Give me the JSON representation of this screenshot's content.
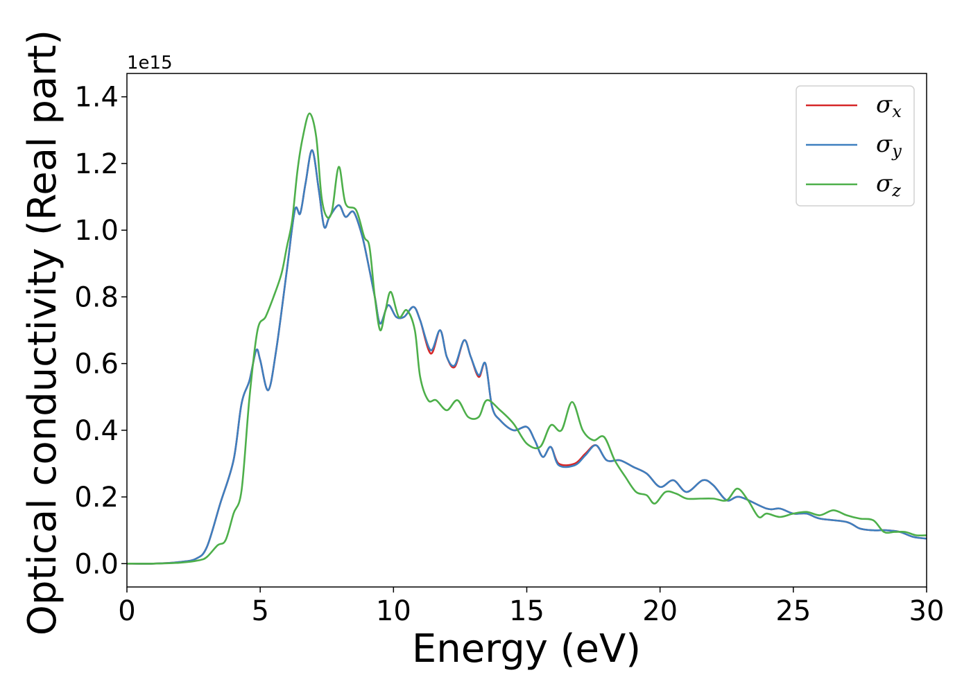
{
  "chart_data": {
    "type": "line",
    "xlabel": "Energy (eV)",
    "ylabel": "Optical conductivity (Real part)",
    "y_offset_label": "1e15",
    "xlim": [
      0,
      30
    ],
    "ylim": [
      -0.07,
      1.47
    ],
    "x_ticks": [
      0,
      5,
      10,
      15,
      20,
      25,
      30
    ],
    "x_tick_labels": [
      "0",
      "5",
      "10",
      "15",
      "20",
      "25",
      "30"
    ],
    "y_ticks": [
      0.0,
      0.2,
      0.4,
      0.6,
      0.8,
      1.0,
      1.2,
      1.4
    ],
    "y_tick_labels": [
      "0.0",
      "0.2",
      "0.4",
      "0.6",
      "0.8",
      "1.0",
      "1.2",
      "1.4"
    ],
    "grid": false,
    "legend_position": "top-right",
    "series": [
      {
        "name": "σx",
        "symbol": "σ",
        "subscript": "x",
        "color": "#d62728",
        "points": [
          [
            0,
            0
          ],
          [
            1,
            0
          ],
          [
            2,
            0.005
          ],
          [
            2.6,
            0.015
          ],
          [
            3,
            0.05
          ],
          [
            3.5,
            0.18
          ],
          [
            4,
            0.31
          ],
          [
            4.3,
            0.48
          ],
          [
            4.6,
            0.55
          ],
          [
            4.85,
            0.64
          ],
          [
            5,
            0.61
          ],
          [
            5.3,
            0.52
          ],
          [
            5.6,
            0.64
          ],
          [
            6,
            0.88
          ],
          [
            6.3,
            1.06
          ],
          [
            6.5,
            1.05
          ],
          [
            6.7,
            1.14
          ],
          [
            6.95,
            1.24
          ],
          [
            7.2,
            1.12
          ],
          [
            7.4,
            1.01
          ],
          [
            7.6,
            1.04
          ],
          [
            7.95,
            1.075
          ],
          [
            8.2,
            1.04
          ],
          [
            8.5,
            1.055
          ],
          [
            8.8,
            0.99
          ],
          [
            9,
            0.92
          ],
          [
            9.3,
            0.8
          ],
          [
            9.5,
            0.72
          ],
          [
            9.8,
            0.775
          ],
          [
            10.1,
            0.74
          ],
          [
            10.4,
            0.74
          ],
          [
            10.75,
            0.77
          ],
          [
            11,
            0.73
          ],
          [
            11.4,
            0.63
          ],
          [
            11.75,
            0.7
          ],
          [
            12,
            0.62
          ],
          [
            12.3,
            0.59
          ],
          [
            12.65,
            0.67
          ],
          [
            12.9,
            0.62
          ],
          [
            13.2,
            0.56
          ],
          [
            13.45,
            0.6
          ],
          [
            13.7,
            0.47
          ],
          [
            14,
            0.43
          ],
          [
            14.5,
            0.4
          ],
          [
            15,
            0.41
          ],
          [
            15.3,
            0.37
          ],
          [
            15.6,
            0.32
          ],
          [
            15.9,
            0.35
          ],
          [
            16.2,
            0.3
          ],
          [
            16.8,
            0.3
          ],
          [
            17.2,
            0.33
          ],
          [
            17.6,
            0.355
          ],
          [
            18,
            0.31
          ],
          [
            18.5,
            0.31
          ],
          [
            19,
            0.29
          ],
          [
            19.5,
            0.27
          ],
          [
            20,
            0.23
          ],
          [
            20.5,
            0.25
          ],
          [
            21,
            0.215
          ],
          [
            21.6,
            0.25
          ],
          [
            22,
            0.235
          ],
          [
            22.5,
            0.19
          ],
          [
            23,
            0.2
          ],
          [
            24,
            0.165
          ],
          [
            24.5,
            0.165
          ],
          [
            25,
            0.15
          ],
          [
            25.5,
            0.15
          ],
          [
            26,
            0.135
          ],
          [
            27,
            0.125
          ],
          [
            27.5,
            0.105
          ],
          [
            28,
            0.1
          ],
          [
            28.5,
            0.1
          ],
          [
            29,
            0.095
          ],
          [
            29.5,
            0.08
          ],
          [
            30,
            0.075
          ]
        ]
      },
      {
        "name": "σy",
        "symbol": "σ",
        "subscript": "y",
        "color": "#3d7fbf",
        "points": [
          [
            0,
            0
          ],
          [
            1,
            0
          ],
          [
            2,
            0.005
          ],
          [
            2.6,
            0.015
          ],
          [
            3,
            0.05
          ],
          [
            3.5,
            0.18
          ],
          [
            4,
            0.31
          ],
          [
            4.3,
            0.48
          ],
          [
            4.6,
            0.55
          ],
          [
            4.85,
            0.64
          ],
          [
            5,
            0.61
          ],
          [
            5.3,
            0.52
          ],
          [
            5.6,
            0.64
          ],
          [
            6,
            0.88
          ],
          [
            6.3,
            1.06
          ],
          [
            6.5,
            1.05
          ],
          [
            6.7,
            1.14
          ],
          [
            6.95,
            1.24
          ],
          [
            7.2,
            1.12
          ],
          [
            7.4,
            1.01
          ],
          [
            7.6,
            1.04
          ],
          [
            7.95,
            1.075
          ],
          [
            8.2,
            1.04
          ],
          [
            8.5,
            1.055
          ],
          [
            8.8,
            0.99
          ],
          [
            9,
            0.92
          ],
          [
            9.3,
            0.8
          ],
          [
            9.5,
            0.72
          ],
          [
            9.8,
            0.775
          ],
          [
            10.1,
            0.74
          ],
          [
            10.4,
            0.74
          ],
          [
            10.75,
            0.77
          ],
          [
            11,
            0.73
          ],
          [
            11.4,
            0.64
          ],
          [
            11.75,
            0.7
          ],
          [
            12,
            0.62
          ],
          [
            12.3,
            0.595
          ],
          [
            12.65,
            0.67
          ],
          [
            12.9,
            0.62
          ],
          [
            13.2,
            0.565
          ],
          [
            13.45,
            0.6
          ],
          [
            13.7,
            0.47
          ],
          [
            14,
            0.43
          ],
          [
            14.5,
            0.4
          ],
          [
            15,
            0.41
          ],
          [
            15.3,
            0.37
          ],
          [
            15.6,
            0.32
          ],
          [
            15.9,
            0.35
          ],
          [
            16.2,
            0.295
          ],
          [
            16.8,
            0.295
          ],
          [
            17.2,
            0.325
          ],
          [
            17.6,
            0.355
          ],
          [
            18,
            0.31
          ],
          [
            18.5,
            0.31
          ],
          [
            19,
            0.29
          ],
          [
            19.5,
            0.27
          ],
          [
            20,
            0.23
          ],
          [
            20.5,
            0.25
          ],
          [
            21,
            0.215
          ],
          [
            21.6,
            0.25
          ],
          [
            22,
            0.235
          ],
          [
            22.5,
            0.19
          ],
          [
            23,
            0.2
          ],
          [
            24,
            0.165
          ],
          [
            24.5,
            0.165
          ],
          [
            25,
            0.15
          ],
          [
            25.5,
            0.15
          ],
          [
            26,
            0.135
          ],
          [
            27,
            0.125
          ],
          [
            27.5,
            0.105
          ],
          [
            28,
            0.1
          ],
          [
            28.5,
            0.1
          ],
          [
            29,
            0.095
          ],
          [
            29.5,
            0.08
          ],
          [
            30,
            0.075
          ]
        ]
      },
      {
        "name": "σz",
        "symbol": "σ",
        "subscript": "z",
        "color": "#4daf4a",
        "points": [
          [
            0,
            0
          ],
          [
            1,
            0
          ],
          [
            2,
            0.003
          ],
          [
            2.7,
            0.01
          ],
          [
            3,
            0.02
          ],
          [
            3.4,
            0.055
          ],
          [
            3.7,
            0.07
          ],
          [
            4,
            0.15
          ],
          [
            4.3,
            0.22
          ],
          [
            4.6,
            0.5
          ],
          [
            4.9,
            0.7
          ],
          [
            5.2,
            0.74
          ],
          [
            5.5,
            0.8
          ],
          [
            5.8,
            0.87
          ],
          [
            6,
            0.95
          ],
          [
            6.2,
            1.03
          ],
          [
            6.4,
            1.18
          ],
          [
            6.6,
            1.28
          ],
          [
            6.85,
            1.35
          ],
          [
            7.1,
            1.28
          ],
          [
            7.3,
            1.1
          ],
          [
            7.5,
            1.04
          ],
          [
            7.7,
            1.06
          ],
          [
            7.95,
            1.19
          ],
          [
            8.2,
            1.08
          ],
          [
            8.6,
            1.06
          ],
          [
            8.9,
            0.98
          ],
          [
            9.1,
            0.95
          ],
          [
            9.3,
            0.8
          ],
          [
            9.5,
            0.7
          ],
          [
            9.7,
            0.76
          ],
          [
            9.9,
            0.815
          ],
          [
            10.2,
            0.74
          ],
          [
            10.5,
            0.76
          ],
          [
            10.8,
            0.7
          ],
          [
            11,
            0.56
          ],
          [
            11.3,
            0.49
          ],
          [
            11.6,
            0.49
          ],
          [
            12,
            0.46
          ],
          [
            12.4,
            0.49
          ],
          [
            12.8,
            0.44
          ],
          [
            13.2,
            0.44
          ],
          [
            13.5,
            0.49
          ],
          [
            14,
            0.46
          ],
          [
            14.5,
            0.42
          ],
          [
            15,
            0.36
          ],
          [
            15.5,
            0.35
          ],
          [
            15.9,
            0.415
          ],
          [
            16.3,
            0.4
          ],
          [
            16.7,
            0.485
          ],
          [
            17.1,
            0.4
          ],
          [
            17.5,
            0.37
          ],
          [
            17.9,
            0.38
          ],
          [
            18.3,
            0.31
          ],
          [
            18.7,
            0.26
          ],
          [
            19.1,
            0.215
          ],
          [
            19.5,
            0.205
          ],
          [
            19.8,
            0.18
          ],
          [
            20.2,
            0.215
          ],
          [
            20.6,
            0.21
          ],
          [
            21,
            0.195
          ],
          [
            21.5,
            0.195
          ],
          [
            22,
            0.195
          ],
          [
            22.5,
            0.19
          ],
          [
            22.9,
            0.225
          ],
          [
            23.3,
            0.19
          ],
          [
            23.7,
            0.14
          ],
          [
            24,
            0.15
          ],
          [
            24.5,
            0.14
          ],
          [
            25,
            0.15
          ],
          [
            25.5,
            0.155
          ],
          [
            26,
            0.145
          ],
          [
            26.5,
            0.16
          ],
          [
            27,
            0.145
          ],
          [
            27.5,
            0.135
          ],
          [
            28,
            0.13
          ],
          [
            28.4,
            0.095
          ],
          [
            28.8,
            0.095
          ],
          [
            29.2,
            0.095
          ],
          [
            29.6,
            0.085
          ],
          [
            30,
            0.085
          ]
        ]
      }
    ]
  }
}
